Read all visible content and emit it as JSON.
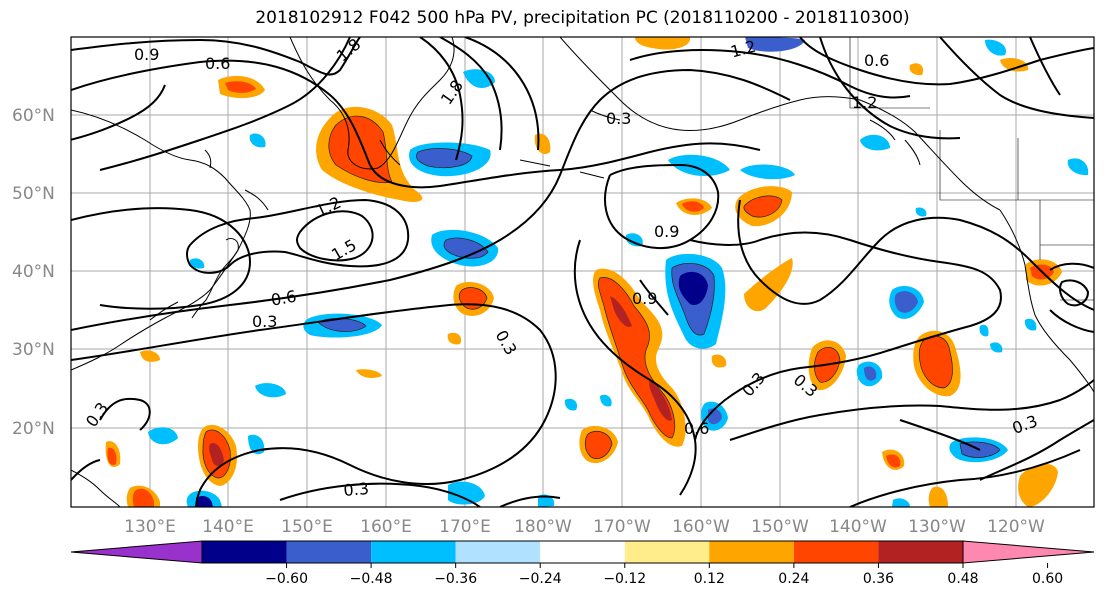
{
  "title": "2018102912 F042 500 hPa PV, precipitation PC (2018110200 - 2018110300)",
  "lat_labels": [
    "60°N",
    "50°N",
    "40°N",
    "30°N",
    "20°N"
  ],
  "lon_labels": [
    "130°E",
    "140°E",
    "150°E",
    "160°E",
    "170°E",
    "180°W",
    "170°W",
    "160°W",
    "150°W",
    "140°W",
    "130°W",
    "120°W"
  ],
  "contour_labels": [
    "0.9",
    "0.6",
    "1.8",
    "1.2",
    "1.5",
    "0.3",
    "0.3",
    "0.9",
    "0.6",
    "1.2",
    "0.9",
    "0.6",
    "0.3",
    "0.3",
    "0.3",
    "0.6",
    "0.3",
    "0.3",
    "0.3",
    "1.2",
    "1.8"
  ],
  "colorbar": {
    "colors": [
      "#9932cc",
      "#00008b",
      "#3a5fcd",
      "#00bfff",
      "#b0e2ff",
      "#ffffff",
      "#ffec8b",
      "#ffa500",
      "#ff4500",
      "#b22222",
      "#ff88b0"
    ],
    "ticks": [
      "−0.60",
      "−0.48",
      "−0.36",
      "−0.24",
      "−0.12",
      "0.12",
      "0.24",
      "0.36",
      "0.48",
      "0.60"
    ]
  }
}
